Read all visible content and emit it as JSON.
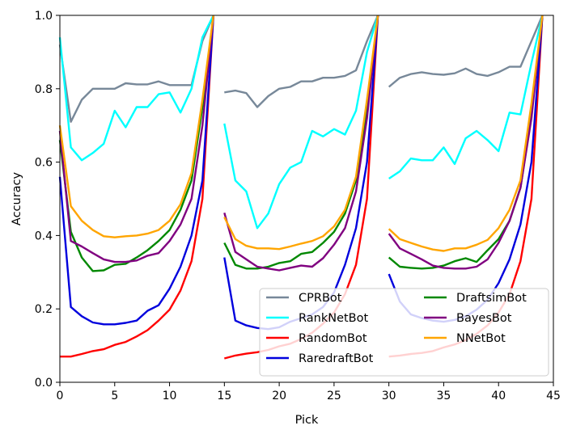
{
  "chart_data": {
    "type": "line",
    "title": "",
    "xlabel": "Pick",
    "ylabel": "Accuracy",
    "xlim": [
      0,
      45
    ],
    "ylim": [
      0.0,
      1.0
    ],
    "xticks": [
      0,
      5,
      10,
      15,
      20,
      25,
      30,
      35,
      40,
      45
    ],
    "yticks": [
      0.0,
      0.2,
      0.4,
      0.6,
      0.8,
      1.0
    ],
    "xtick_labels": [
      "0",
      "5",
      "10",
      "15",
      "20",
      "25",
      "30",
      "35",
      "40",
      "45"
    ],
    "ytick_labels": [
      "0.0",
      "0.2",
      "0.4",
      "0.6",
      "0.8",
      "1.0"
    ],
    "grid": false,
    "legend_position": "lower-right",
    "legend_columns": 2,
    "series": [
      {
        "name": "CPRBot",
        "color": "#778899",
        "segments": [
          {
            "x": [
              0,
              1,
              2,
              3,
              4,
              5,
              6,
              7,
              8,
              9,
              10,
              11,
              12,
              13,
              14
            ],
            "y": [
              0.92,
              0.71,
              0.77,
              0.8,
              0.8,
              0.8,
              0.815,
              0.812,
              0.812,
              0.82,
              0.81,
              0.81,
              0.81,
              0.93,
              1.0
            ]
          },
          {
            "x": [
              15,
              16,
              17,
              18,
              19,
              20,
              21,
              22,
              23,
              24,
              25,
              26,
              27,
              28,
              29
            ],
            "y": [
              0.79,
              0.795,
              0.788,
              0.75,
              0.78,
              0.8,
              0.805,
              0.82,
              0.82,
              0.83,
              0.83,
              0.835,
              0.85,
              0.93,
              1.0
            ]
          },
          {
            "x": [
              30,
              31,
              32,
              33,
              34,
              35,
              36,
              37,
              38,
              39,
              40,
              41,
              42,
              43,
              44
            ],
            "y": [
              0.805,
              0.83,
              0.84,
              0.845,
              0.84,
              0.838,
              0.842,
              0.855,
              0.84,
              0.835,
              0.845,
              0.86,
              0.86,
              0.93,
              1.0
            ]
          }
        ]
      },
      {
        "name": "RankNetBot",
        "color": "#00ffff",
        "segments": [
          {
            "x": [
              0,
              1,
              2,
              3,
              4,
              5,
              6,
              7,
              8,
              9,
              10,
              11,
              12,
              13,
              14
            ],
            "y": [
              0.94,
              0.64,
              0.605,
              0.625,
              0.65,
              0.74,
              0.695,
              0.75,
              0.75,
              0.785,
              0.79,
              0.735,
              0.8,
              0.94,
              1.0
            ]
          },
          {
            "x": [
              15,
              16,
              17,
              18,
              19,
              20,
              21,
              22,
              23,
              24,
              25,
              26,
              27,
              28,
              29
            ],
            "y": [
              0.705,
              0.55,
              0.52,
              0.42,
              0.46,
              0.54,
              0.585,
              0.6,
              0.685,
              0.67,
              0.69,
              0.675,
              0.74,
              0.9,
              1.0
            ]
          },
          {
            "x": [
              30,
              31,
              32,
              33,
              34,
              35,
              36,
              37,
              38,
              39,
              40,
              41,
              42,
              43,
              44
            ],
            "y": [
              0.555,
              0.575,
              0.61,
              0.605,
              0.605,
              0.64,
              0.595,
              0.665,
              0.685,
              0.66,
              0.63,
              0.735,
              0.73,
              0.87,
              1.0
            ]
          }
        ]
      },
      {
        "name": "RandomBot",
        "color": "#ff0000",
        "segments": [
          {
            "x": [
              0,
              1,
              2,
              3,
              4,
              5,
              6,
              7,
              8,
              9,
              10,
              11,
              12,
              13,
              14
            ],
            "y": [
              0.07,
              0.07,
              0.077,
              0.085,
              0.09,
              0.102,
              0.11,
              0.125,
              0.142,
              0.168,
              0.198,
              0.25,
              0.33,
              0.5,
              1.0
            ]
          },
          {
            "x": [
              15,
              16,
              17,
              18,
              19,
              20,
              21,
              22,
              23,
              24,
              25,
              26,
              27,
              28,
              29
            ],
            "y": [
              0.065,
              0.073,
              0.078,
              0.082,
              0.088,
              0.098,
              0.105,
              0.118,
              0.135,
              0.16,
              0.19,
              0.24,
              0.32,
              0.5,
              1.0
            ]
          },
          {
            "x": [
              30,
              31,
              32,
              33,
              34,
              35,
              36,
              37,
              38,
              39,
              40,
              41,
              42,
              43,
              44
            ],
            "y": [
              0.07,
              0.073,
              0.077,
              0.08,
              0.085,
              0.095,
              0.103,
              0.115,
              0.132,
              0.155,
              0.19,
              0.24,
              0.33,
              0.5,
              1.0
            ]
          }
        ]
      },
      {
        "name": "RaredraftBot",
        "color": "#0000dd",
        "segments": [
          {
            "x": [
              0,
              1,
              2,
              3,
              4,
              5,
              6,
              7,
              8,
              9,
              10,
              11,
              12,
              13,
              14
            ],
            "y": [
              0.56,
              0.205,
              0.18,
              0.163,
              0.158,
              0.158,
              0.162,
              0.168,
              0.195,
              0.21,
              0.255,
              0.315,
              0.4,
              0.55,
              1.0
            ]
          },
          {
            "x": [
              15,
              16,
              17,
              18,
              19,
              20,
              21,
              22,
              23,
              24,
              25,
              26,
              27,
              28,
              29
            ],
            "y": [
              0.34,
              0.168,
              0.155,
              0.148,
              0.145,
              0.15,
              0.165,
              0.175,
              0.185,
              0.205,
              0.245,
              0.32,
              0.42,
              0.6,
              1.0
            ]
          },
          {
            "x": [
              30,
              31,
              32,
              33,
              34,
              35,
              36,
              37,
              38,
              39,
              40,
              41,
              42,
              43,
              44
            ],
            "y": [
              0.295,
              0.22,
              0.185,
              0.175,
              0.168,
              0.165,
              0.17,
              0.18,
              0.198,
              0.225,
              0.27,
              0.335,
              0.43,
              0.6,
              1.0
            ]
          }
        ]
      },
      {
        "name": "DraftsimBot",
        "color": "#008800",
        "segments": [
          {
            "x": [
              0,
              1,
              2,
              3,
              4,
              5,
              6,
              7,
              8,
              9,
              10,
              11,
              12,
              13,
              14
            ],
            "y": [
              0.66,
              0.41,
              0.34,
              0.303,
              0.305,
              0.32,
              0.323,
              0.34,
              0.36,
              0.385,
              0.415,
              0.47,
              0.55,
              0.75,
              1.0
            ]
          },
          {
            "x": [
              15,
              16,
              17,
              18,
              19,
              20,
              21,
              22,
              23,
              24,
              25,
              26,
              27,
              28,
              29
            ],
            "y": [
              0.38,
              0.32,
              0.31,
              0.31,
              0.315,
              0.325,
              0.33,
              0.35,
              0.355,
              0.38,
              0.41,
              0.46,
              0.55,
              0.75,
              1.0
            ]
          },
          {
            "x": [
              30,
              31,
              32,
              33,
              34,
              35,
              36,
              37,
              38,
              39,
              40,
              41,
              42,
              43,
              44
            ],
            "y": [
              0.34,
              0.315,
              0.312,
              0.31,
              0.312,
              0.318,
              0.33,
              0.338,
              0.328,
              0.36,
              0.39,
              0.44,
              0.53,
              0.73,
              1.0
            ]
          }
        ]
      },
      {
        "name": "BayesBot",
        "color": "#800080",
        "segments": [
          {
            "x": [
              0,
              1,
              2,
              3,
              4,
              5,
              6,
              7,
              8,
              9,
              10,
              11,
              12,
              13,
              14
            ],
            "y": [
              0.685,
              0.385,
              0.37,
              0.352,
              0.335,
              0.328,
              0.328,
              0.332,
              0.345,
              0.352,
              0.385,
              0.43,
              0.5,
              0.7,
              1.0
            ]
          },
          {
            "x": [
              15,
              16,
              17,
              18,
              19,
              20,
              21,
              22,
              23,
              24,
              25,
              26,
              27,
              28,
              29
            ],
            "y": [
              0.462,
              0.355,
              0.335,
              0.315,
              0.31,
              0.305,
              0.312,
              0.318,
              0.315,
              0.338,
              0.375,
              0.42,
              0.52,
              0.72,
              1.0
            ]
          },
          {
            "x": [
              30,
              31,
              32,
              33,
              34,
              35,
              36,
              37,
              38,
              39,
              40,
              41,
              42,
              43,
              44
            ],
            "y": [
              0.405,
              0.365,
              0.35,
              0.335,
              0.318,
              0.312,
              0.31,
              0.31,
              0.315,
              0.335,
              0.38,
              0.44,
              0.53,
              0.72,
              1.0
            ]
          }
        ]
      },
      {
        "name": "NNetBot",
        "color": "#ffa500",
        "segments": [
          {
            "x": [
              0,
              1,
              2,
              3,
              4,
              5,
              6,
              7,
              8,
              9,
              10,
              11,
              12,
              13,
              14
            ],
            "y": [
              0.7,
              0.48,
              0.44,
              0.415,
              0.398,
              0.395,
              0.398,
              0.4,
              0.405,
              0.415,
              0.44,
              0.485,
              0.57,
              0.77,
              1.0
            ]
          },
          {
            "x": [
              15,
              16,
              17,
              18,
              19,
              20,
              21,
              22,
              23,
              24,
              25,
              26,
              27,
              28,
              29
            ],
            "y": [
              0.45,
              0.39,
              0.372,
              0.365,
              0.365,
              0.363,
              0.37,
              0.378,
              0.385,
              0.398,
              0.425,
              0.47,
              0.56,
              0.77,
              1.0
            ]
          },
          {
            "x": [
              30,
              31,
              32,
              33,
              34,
              35,
              36,
              37,
              38,
              39,
              40,
              41,
              42,
              43,
              44
            ],
            "y": [
              0.418,
              0.39,
              0.38,
              0.37,
              0.362,
              0.358,
              0.365,
              0.365,
              0.375,
              0.388,
              0.42,
              0.47,
              0.55,
              0.76,
              1.0
            ]
          }
        ]
      }
    ]
  }
}
